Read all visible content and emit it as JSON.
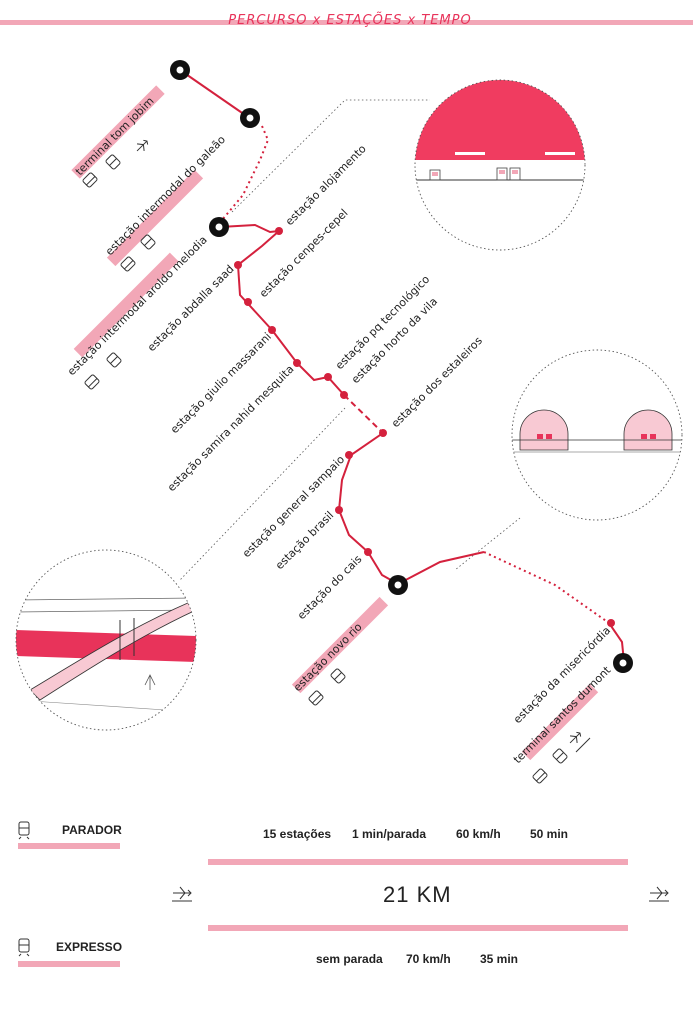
{
  "header": {
    "title": "PERCURSO   x   ESTAÇÕES   x   TEMPO"
  },
  "stations": {
    "tom_jobim": "terminal tom jobim",
    "galeao": "estação intermodal do galeão",
    "aroldo_melodia": "estação intermodal aroldo melodia",
    "alojamento": "estação alojamento",
    "cenpes_cepel": "estação cenpes-cepel",
    "abdalla_saad": "estação abdalla saad",
    "giulio_massarani": "estação giulio massarani",
    "samira_nahid_mesquita": "estação samira nahid mesquita",
    "pq_tecnologico": "estação pq tecnológico",
    "horto_da_vila": "estação horto da vila",
    "estaleiros": "estação dos estaleiros",
    "general_sampaio": "estação general sampaio",
    "brasil": "estação brasil",
    "do_cais": "estação do cais",
    "novo_rio": "estação novo rio",
    "misericordia": "estação da misericórdia",
    "santos_dumont": "terminal santos dumont"
  },
  "colors": {
    "accent": "#e8335a",
    "line": "#d4213d",
    "pink": "#f2a7b7",
    "black": "#111111"
  },
  "legend": {
    "parador": {
      "label": "PARADOR",
      "icon": "train-icon",
      "stations": "15 estações",
      "stop_time": "1 min/parada",
      "speed": "60 km/h",
      "duration": "50 min"
    },
    "expresso": {
      "label": "EXPRESSO",
      "icon": "train-icon",
      "stops": "sem parada",
      "speed": "70 km/h",
      "duration": "35 min"
    },
    "distance": "21 KM",
    "airplane_icon": "airplane-icon"
  }
}
